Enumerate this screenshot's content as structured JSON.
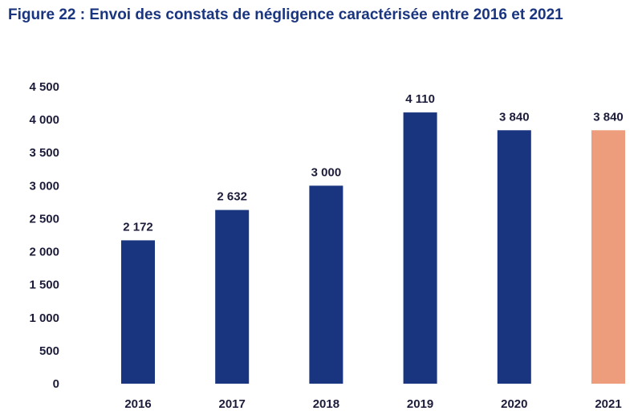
{
  "title": "Figure 22 : Envoi des constats de négligence caractérisée entre 2016 et 2021",
  "colors": {
    "bar": "#1a3580",
    "highlight": "#ee9d7c",
    "text": "#1c1c3a"
  },
  "chart_data": {
    "type": "bar",
    "title": "Figure 22 : Envoi des constats de négligence caractérisée entre 2016 et 2021",
    "categories": [
      "2016",
      "2017",
      "2018",
      "2019",
      "2020",
      "2021"
    ],
    "values": [
      2172,
      2632,
      3000,
      4110,
      3840,
      3840
    ],
    "value_labels": [
      "2 172",
      "2 632",
      "3 000",
      "4 110",
      "3 840",
      "3 840"
    ],
    "highlight_index": 5,
    "xlabel": "",
    "ylabel": "",
    "ylim": [
      0,
      4500
    ],
    "yticks": [
      0,
      500,
      1000,
      1500,
      2000,
      2500,
      3000,
      3500,
      4000,
      4500
    ],
    "ytick_labels": [
      "0",
      "500",
      "1 000",
      "1 500",
      "2 000",
      "2 500",
      "3 000",
      "3 500",
      "4 000",
      "4 500"
    ],
    "grid": false,
    "legend": "none"
  }
}
